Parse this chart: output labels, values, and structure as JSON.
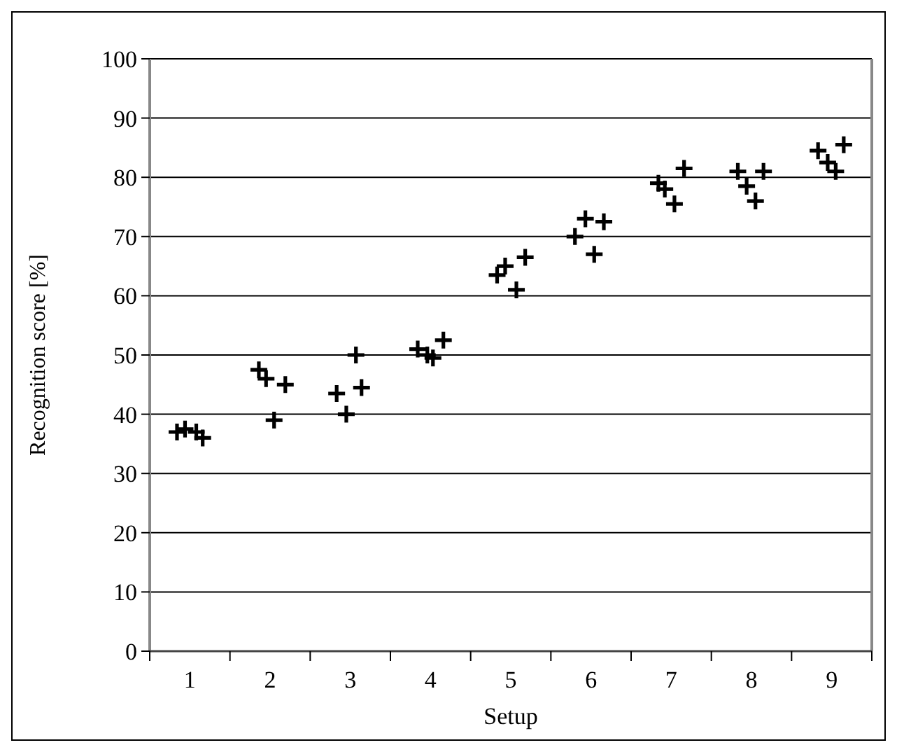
{
  "chart_data": {
    "type": "scatter",
    "xlabel": "Setup",
    "ylabel": "Recognition score [%]",
    "x": [
      0.84,
      0.94,
      1.08,
      1.16,
      1.86,
      1.95,
      2.05,
      2.19,
      2.83,
      2.95,
      3.07,
      3.14,
      3.84,
      3.96,
      4.03,
      4.16,
      4.83,
      4.93,
      5.07,
      5.18,
      5.8,
      5.93,
      6.04,
      6.16,
      6.84,
      6.92,
      7.04,
      7.16,
      7.83,
      7.94,
      8.05,
      8.15,
      8.83,
      8.95,
      9.05,
      9.15
    ],
    "values": [
      37,
      37.5,
      37,
      36,
      47.5,
      46,
      39,
      45,
      43.5,
      40,
      50,
      44.5,
      51,
      50,
      49.5,
      52.5,
      63.5,
      65,
      61,
      66.5,
      70,
      73,
      67,
      72.5,
      79,
      78,
      75.5,
      81.5,
      81,
      78.5,
      76,
      81,
      84.5,
      82.5,
      81,
      85.5
    ],
    "color": "#000000",
    "marker": "cross",
    "grid": "y",
    "xlim": [
      0.5,
      9.5
    ],
    "xticks": [
      {
        "value": 0.5,
        "label": null
      },
      {
        "value": 1,
        "label": "1"
      },
      {
        "value": 1.5,
        "label": null
      },
      {
        "value": 2,
        "label": "2"
      },
      {
        "value": 2.5,
        "label": null
      },
      {
        "value": 3,
        "label": "3"
      },
      {
        "value": 3.5,
        "label": null
      },
      {
        "value": 4,
        "label": "4"
      },
      {
        "value": 4.5,
        "label": null
      },
      {
        "value": 5,
        "label": "5"
      },
      {
        "value": 5.5,
        "label": null
      },
      {
        "value": 6,
        "label": "6"
      },
      {
        "value": 6.5,
        "label": null
      },
      {
        "value": 7,
        "label": "7"
      },
      {
        "value": 7.5,
        "label": null
      },
      {
        "value": 8,
        "label": "8"
      },
      {
        "value": 8.5,
        "label": null
      },
      {
        "value": 9,
        "label": "9"
      },
      {
        "value": 9.5,
        "label": null
      }
    ],
    "ylim": [
      0,
      100
    ],
    "yticks": [
      0,
      10,
      20,
      30,
      40,
      50,
      60,
      70,
      80,
      90,
      100
    ]
  }
}
